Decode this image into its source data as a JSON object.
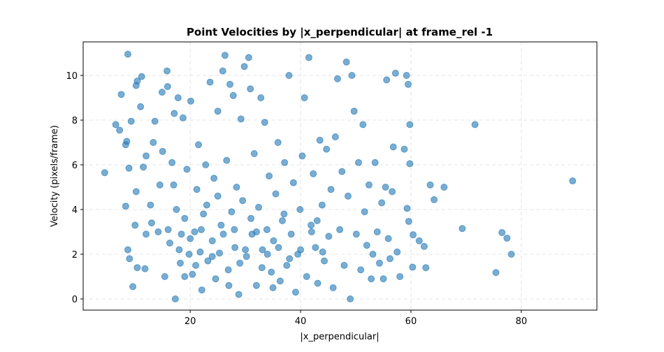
{
  "chart_data": {
    "type": "scatter",
    "title": "Point Velocities by |x_perpendicular| at frame_rel -1",
    "x_label": "|x_perpendicular|",
    "y_label": "Velocity (pixels/frame)",
    "color": "#1f77b4",
    "grid": true,
    "xlim": [
      0.6,
      93.7
    ],
    "ylim": [
      -0.5,
      11.5
    ],
    "xticks": [
      20,
      40,
      60,
      80
    ],
    "yticks": [
      0,
      2,
      4,
      6,
      8,
      10
    ],
    "x": [
      4.5,
      6.5,
      7.2,
      7.5,
      8.3,
      8.5,
      8.7,
      8.9,
      9.3,
      9.6,
      10.2,
      10.4,
      11.2,
      11.0,
      8.3,
      8.7,
      9.0,
      10.0,
      10.4,
      10.2,
      11.5,
      11.8,
      12.0,
      12.8,
      13.3,
      13.6,
      14.2,
      14.5,
      14.9,
      15.4,
      15.8,
      15.9,
      16.3,
      16.7,
      17.1,
      17.3,
      17.5,
      17.8,
      18.2,
      18.4,
      18.7,
      19.0,
      19.4,
      19.8,
      20.1,
      20.4,
      20.8,
      21.2,
      21.5,
      21.8,
      22.1,
      22.4,
      22.8,
      23.2,
      23.6,
      24.0,
      24.3,
      24.6,
      25.0,
      25.3,
      25.6,
      25.9,
      26.3,
      26.6,
      26.9,
      27.2,
      27.5,
      27.8,
      28.1,
      28.4,
      28.8,
      29.2,
      29.5,
      29.8,
      30.2,
      30.6,
      30.9,
      31.2,
      31.6,
      32.0,
      32.4,
      32.8,
      33.1,
      33.5,
      33.9,
      34.3,
      34.7,
      35.1,
      35.5,
      35.9,
      36.3,
      36.7,
      37.1,
      37.5,
      37.9,
      38.3,
      38.7,
      39.1,
      39.5,
      39.9,
      40.3,
      40.7,
      41.1,
      41.5,
      41.9,
      42.3,
      42.7,
      43.1,
      43.5,
      43.9,
      44.3,
      44.7,
      45.1,
      45.5,
      45.9,
      46.3,
      46.7,
      47.1,
      47.5,
      47.9,
      48.3,
      48.6,
      49.0,
      49.3,
      49.7,
      50.1,
      50.5,
      50.9,
      51.3,
      51.6,
      52.0,
      52.4,
      52.8,
      53.1,
      53.5,
      53.9,
      54.3,
      54.7,
      55.0,
      55.4,
      55.6,
      55.9,
      56.2,
      56.6,
      56.8,
      57.2,
      57.5,
      58.0,
      58.8,
      59.2,
      59.5,
      59.8,
      59.8,
      59.3,
      59.6,
      60.3,
      60.4,
      61.5,
      62.4,
      62.7,
      63.5,
      64.2,
      66.0,
      69.3,
      71.6,
      75.4,
      76.5,
      77.4,
      78.2,
      89.3,
      16,
      18,
      20,
      22,
      24,
      26,
      28,
      30,
      32,
      34,
      36,
      38,
      40,
      42,
      44,
      19,
      23,
      27,
      31,
      35,
      13,
      21,
      29,
      33,
      37,
      25,
      17,
      15,
      12,
      43
    ],
    "y": [
      5.65,
      7.8,
      7.55,
      9.15,
      6.9,
      7.05,
      10.95,
      5.85,
      7.95,
      0.55,
      9.55,
      9.75,
      9.95,
      8.6,
      4.15,
      2.2,
      1.8,
      3.3,
      1.4,
      4.8,
      5.9,
      1.35,
      2.9,
      4.2,
      7.0,
      7.95,
      3.0,
      5.1,
      9.25,
      1.0,
      10.2,
      9.5,
      2.5,
      6.1,
      8.3,
      0.0,
      4.0,
      9.0,
      1.6,
      2.9,
      8.1,
      3.6,
      5.8,
      2.0,
      8.85,
      1.1,
      3.0,
      4.9,
      6.9,
      2.1,
      0.4,
      3.8,
      6.0,
      1.7,
      9.7,
      2.6,
      5.4,
      0.9,
      8.4,
      2.05,
      3.3,
      10.2,
      10.9,
      6.2,
      1.3,
      9.6,
      3.9,
      9.1,
      2.3,
      5.0,
      0.2,
      8.05,
      4.4,
      10.4,
      1.9,
      10.8,
      9.4,
      2.9,
      6.5,
      0.6,
      4.1,
      9.0,
      2.2,
      7.9,
      3.1,
      5.5,
      1.2,
      2.6,
      4.7,
      7.0,
      0.8,
      3.5,
      6.1,
      1.5,
      10.0,
      2.9,
      5.2,
      0.3,
      2.0,
      4.0,
      6.4,
      9.0,
      1.0,
      10.8,
      3.3,
      5.6,
      2.3,
      0.7,
      7.1,
      4.2,
      1.7,
      6.7,
      2.8,
      4.9,
      0.5,
      7.25,
      9.85,
      3.1,
      5.7,
      1.5,
      10.6,
      4.6,
      0.0,
      10.0,
      8.4,
      2.9,
      6.1,
      1.3,
      7.8,
      3.9,
      2.4,
      5.1,
      0.9,
      2.0,
      6.1,
      3.0,
      1.6,
      4.3,
      0.9,
      5.0,
      9.8,
      2.7,
      1.8,
      4.8,
      6.8,
      10.1,
      2.1,
      1.0,
      6.7,
      10.0,
      9.6,
      7.8,
      6.05,
      4.05,
      3.47,
      1.42,
      2.87,
      2.6,
      2.35,
      1.4,
      5.1,
      4.44,
      5.0,
      3.15,
      7.8,
      1.18,
      2.97,
      2.72,
      2.0,
      5.28,
      3.1,
      2.2,
      2.7,
      3.1,
      1.9,
      2.9,
      3.1,
      2.2,
      3.0,
      2.0,
      2.3,
      1.8,
      2.2,
      3.0,
      2.1,
      1.0,
      4.2,
      0.6,
      3.6,
      0.5,
      3.4,
      1.5,
      1.6,
      1.4,
      3.8,
      4.6,
      5.1,
      6.6,
      6.4,
      3.5
    ]
  }
}
